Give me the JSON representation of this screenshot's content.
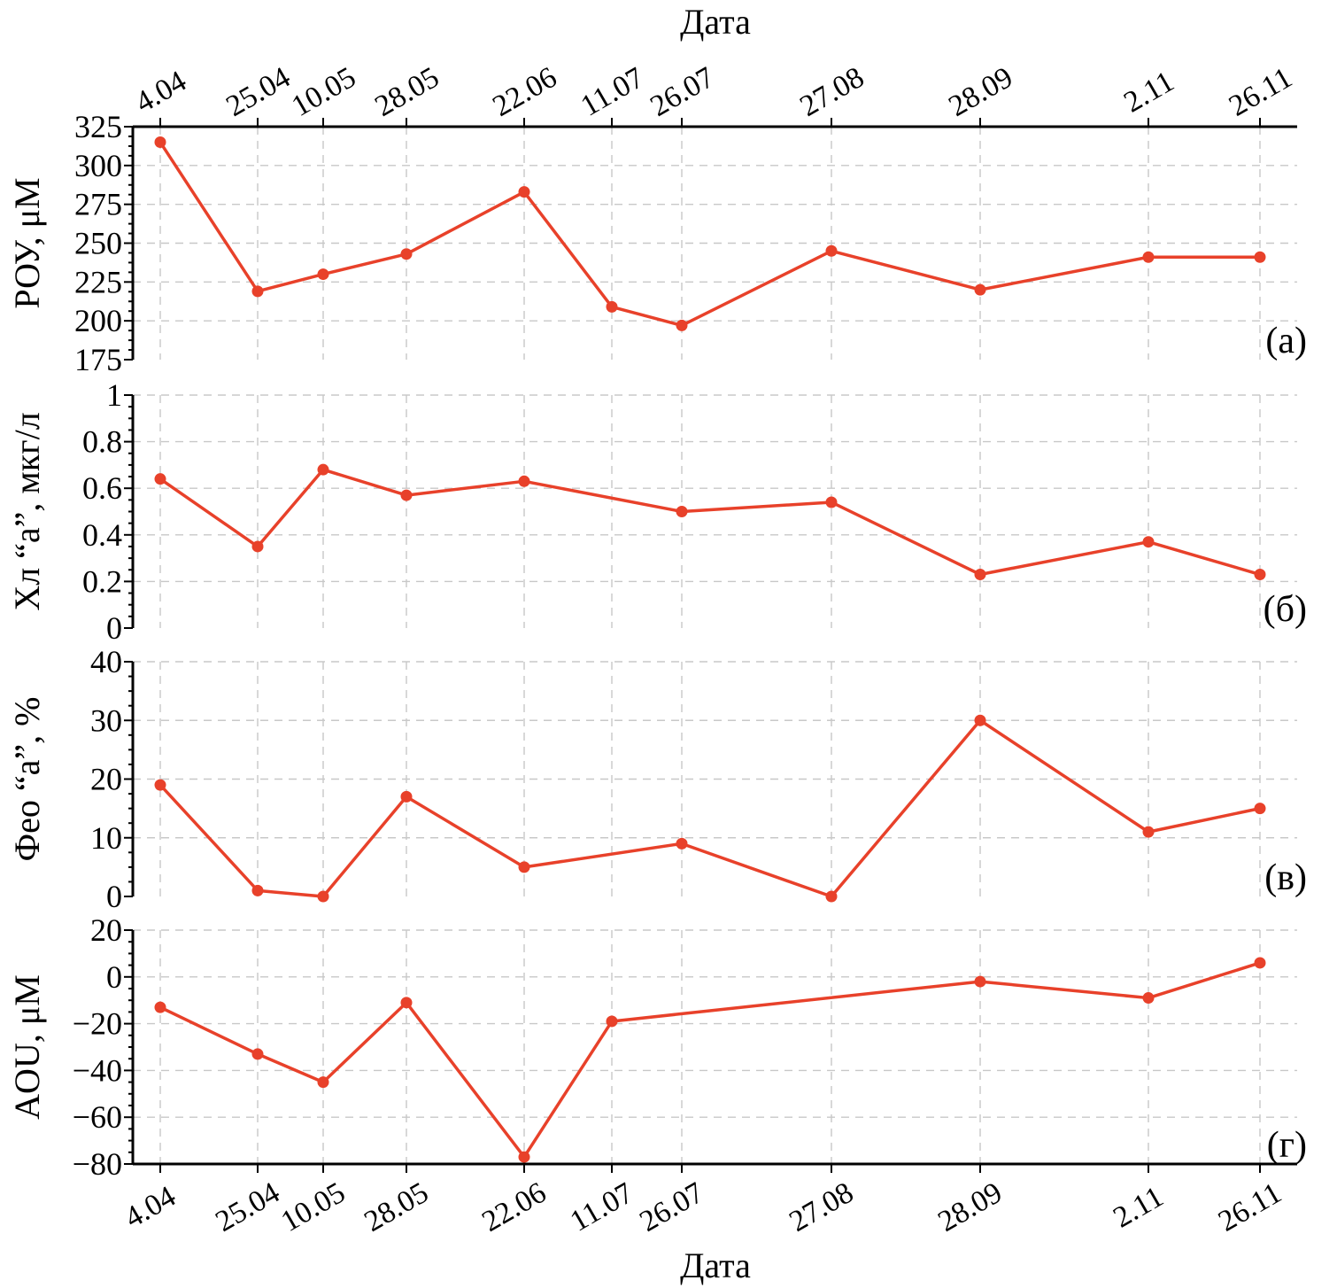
{
  "chart_data": {
    "type": "line",
    "x_axis": {
      "label": "Дата",
      "categories": [
        "4.04",
        "25.04",
        "10.05",
        "28.05",
        "22.06",
        "11.07",
        "26.07",
        "27.08",
        "28.09",
        "2.11",
        "26.11"
      ]
    },
    "line_color": "#e8412a",
    "panels": [
      {
        "letter": "(а)",
        "ylabel": "РОУ, μМ",
        "ylim": [
          175,
          325
        ],
        "yticks": [
          175,
          200,
          225,
          250,
          275,
          300,
          325
        ],
        "ytick_labels": [
          "175",
          "200",
          "225",
          "250",
          "275",
          "300",
          "325"
        ],
        "points": [
          {
            "x": "4.04",
            "y": 315
          },
          {
            "x": "25.04",
            "y": 219
          },
          {
            "x": "10.05",
            "y": 230
          },
          {
            "x": "28.05",
            "y": 243
          },
          {
            "x": "22.06",
            "y": 283
          },
          {
            "x": "11.07",
            "y": 209
          },
          {
            "x": "26.07",
            "y": 197
          },
          {
            "x": "27.08",
            "y": 245
          },
          {
            "x": "28.09",
            "y": 220
          },
          {
            "x": "2.11",
            "y": 241
          },
          {
            "x": "26.11",
            "y": 241
          }
        ]
      },
      {
        "letter": "(б)",
        "ylabel": "Хл “а”, мкг/л",
        "ylim": [
          0,
          1
        ],
        "yticks": [
          0,
          0.2,
          0.4,
          0.6,
          0.8,
          1
        ],
        "ytick_labels": [
          "0",
          "0.2",
          "0.4",
          "0.6",
          "0.8",
          "1"
        ],
        "points": [
          {
            "x": "4.04",
            "y": 0.64
          },
          {
            "x": "25.04",
            "y": 0.35
          },
          {
            "x": "10.05",
            "y": 0.68
          },
          {
            "x": "28.05",
            "y": 0.57
          },
          {
            "x": "22.06",
            "y": 0.63
          },
          {
            "x": "26.07",
            "y": 0.5
          },
          {
            "x": "27.08",
            "y": 0.54
          },
          {
            "x": "28.09",
            "y": 0.23
          },
          {
            "x": "2.11",
            "y": 0.37
          },
          {
            "x": "26.11",
            "y": 0.23
          }
        ]
      },
      {
        "letter": "(в)",
        "ylabel": "Фео “а”, %",
        "ylim": [
          0,
          40
        ],
        "yticks": [
          0,
          10,
          20,
          30,
          40
        ],
        "ytick_labels": [
          "0",
          "10",
          "20",
          "30",
          "40"
        ],
        "points": [
          {
            "x": "4.04",
            "y": 19
          },
          {
            "x": "25.04",
            "y": 1
          },
          {
            "x": "10.05",
            "y": 0
          },
          {
            "x": "28.05",
            "y": 17
          },
          {
            "x": "22.06",
            "y": 5
          },
          {
            "x": "26.07",
            "y": 9
          },
          {
            "x": "27.08",
            "y": 0
          },
          {
            "x": "28.09",
            "y": 30
          },
          {
            "x": "2.11",
            "y": 11
          },
          {
            "x": "26.11",
            "y": 15
          }
        ]
      },
      {
        "letter": "(г)",
        "ylabel": "AOU, μМ",
        "ylim": [
          -80,
          20
        ],
        "yticks": [
          -80,
          -60,
          -40,
          -20,
          0,
          20
        ],
        "ytick_labels": [
          "−80",
          "−60",
          "−40",
          "−20",
          "0",
          "20"
        ],
        "points": [
          {
            "x": "4.04",
            "y": -13
          },
          {
            "x": "25.04",
            "y": -33
          },
          {
            "x": "10.05",
            "y": -45
          },
          {
            "x": "28.05",
            "y": -11
          },
          {
            "x": "22.06",
            "y": -77
          },
          {
            "x": "11.07",
            "y": -19
          },
          {
            "x": "28.09",
            "y": -2
          },
          {
            "x": "2.11",
            "y": -9
          },
          {
            "x": "26.11",
            "y": 6
          }
        ]
      }
    ],
    "grid": true
  }
}
